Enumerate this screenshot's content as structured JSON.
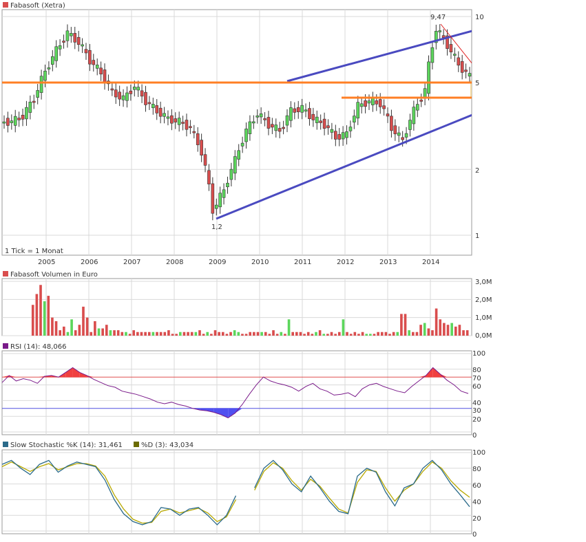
{
  "colors": {
    "up": "#5cd65c",
    "down": "#d94d4d",
    "channel": "#4a4ac0",
    "support": "#ff7f24",
    "trend": "#e02020",
    "rsi_line": "#7a1a8a",
    "stoch_k": "#2a6a8a",
    "stoch_d": "#b8a800",
    "highlight": "#f2d9a0"
  },
  "price": {
    "legend": "Fabasoft (Xetra)",
    "note": "1 Tick = 1 Monat",
    "high_label": "9,47",
    "low_label": "1,2",
    "y_ticks": [
      "10",
      "5",
      "2",
      "1"
    ],
    "x_ticks": [
      "2005",
      "2006",
      "2007",
      "2008",
      "2009",
      "2010",
      "2011",
      "2012",
      "2013",
      "2014"
    ]
  },
  "volume": {
    "legend": "Fabasoft Volumen in Euro",
    "y_ticks": [
      "3,0M",
      "2,0M",
      "1,0M",
      "0,0M"
    ]
  },
  "rsi": {
    "legend": "RSI (14): 48,066",
    "y_ticks": [
      "100",
      "80",
      "60",
      "40",
      "20",
      "0"
    ],
    "level_high": "70",
    "level_low": "30"
  },
  "stoch": {
    "legend_k": "Slow Stochastic %K (14): 31,461",
    "legend_d": "%D (3): 43,034",
    "y_ticks": [
      "100",
      "80",
      "60",
      "40",
      "20",
      "0"
    ]
  },
  "chart_data": [
    {
      "type": "line",
      "title": "Fabasoft (Xetra)",
      "scale": "log",
      "ylim": [
        0.9,
        11
      ],
      "x": [
        "2004-07",
        "2004-10",
        "2005-01",
        "2005-04",
        "2005-07",
        "2005-10",
        "2006-01",
        "2006-04",
        "2006-07",
        "2006-10",
        "2007-01",
        "2007-04",
        "2007-07",
        "2007-10",
        "2008-01",
        "2008-04",
        "2008-07",
        "2008-10",
        "2009-01",
        "2009-04",
        "2009-07",
        "2009-10",
        "2010-01",
        "2010-04",
        "2010-07",
        "2010-10",
        "2011-01",
        "2011-04",
        "2011-07",
        "2011-10",
        "2012-01",
        "2012-04",
        "2012-07",
        "2012-10",
        "2013-01",
        "2013-04",
        "2013-07",
        "2013-10",
        "2014-01",
        "2014-04",
        "2014-07",
        "2014-10"
      ],
      "series": [
        {
          "values": [
            3.3,
            3.5,
            4.2,
            5.6,
            7.0,
            8.4,
            7.6,
            6.3,
            5.5,
            4.5,
            4.2,
            4.8,
            4.1,
            3.7,
            3.4,
            3.3,
            3.1,
            2.4,
            1.3,
            1.6,
            2.2,
            3.0,
            3.6,
            3.2,
            3.0,
            3.7,
            3.8,
            3.4,
            3.2,
            2.8,
            2.9,
            3.9,
            4.1,
            4.0,
            3.1,
            2.7,
            3.7,
            4.6,
            8.8,
            7.4,
            6.0,
            5.3
          ]
        }
      ],
      "annotations": [
        "9,47",
        "1,2"
      ]
    },
    {
      "type": "bar",
      "title": "Fabasoft Volumen in Euro",
      "ylim": [
        0,
        3.0
      ],
      "series": [
        {
          "values": [
            0,
            0,
            0,
            0,
            0,
            0,
            0,
            1.7,
            2.3,
            2.8,
            1.9,
            2.2,
            1.0,
            0.8,
            0.3,
            0.5,
            0.2,
            0.9,
            0.3,
            0.6,
            1.6,
            1.0,
            0.2,
            0.8,
            0.4,
            0.4,
            0.6,
            0.3,
            0.3,
            0.3,
            0.2,
            0.2,
            0.1,
            0.3,
            0.2,
            0.2,
            0.2,
            0.2,
            0.2,
            0.2,
            0.2,
            0.2,
            0.3,
            0.1,
            0.1,
            0.2,
            0.2,
            0.2,
            0.2,
            0.2,
            0.3,
            0.1,
            0.2,
            0.1,
            0.3,
            0.2,
            0.2,
            0.1,
            0.2,
            0.3,
            0.2,
            0.1,
            0.1,
            0.2,
            0.2,
            0.2,
            0.2,
            0.2,
            0.1,
            0.3,
            0.1,
            0.2,
            0.1,
            0.9,
            0.2,
            0.2,
            0.2,
            0.1,
            0.2,
            0.1,
            0.2,
            0.3,
            0.1,
            0.1,
            0.2,
            0.1,
            0.2,
            0.9,
            0.2,
            0.1,
            0.2,
            0.1,
            0.2,
            0.1,
            0.1,
            0.1,
            0.2,
            0.2,
            0.2,
            0.1,
            0.2,
            0.2,
            1.2,
            1.2,
            0.3,
            0.2,
            0.2,
            0.6,
            0.7,
            0.4,
            0.3,
            1.5,
            0.9,
            0.7,
            0.6,
            0.7,
            0.5,
            0.6,
            0.3,
            0.3
          ]
        }
      ]
    },
    {
      "type": "line",
      "title": "RSI (14): 48,066",
      "ylim": [
        0,
        100
      ],
      "series": [
        {
          "name": "RSI",
          "values": [
            63,
            72,
            65,
            68,
            66,
            62,
            71,
            72,
            70,
            76,
            82,
            76,
            72,
            67,
            63,
            59,
            57,
            52,
            50,
            48,
            45,
            42,
            38,
            36,
            38,
            35,
            33,
            30,
            28,
            27,
            25,
            22,
            18,
            24,
            35,
            48,
            60,
            70,
            65,
            62,
            60,
            57,
            52,
            58,
            62,
            55,
            52,
            47,
            48,
            50,
            45,
            55,
            60,
            62,
            58,
            55,
            52,
            50,
            58,
            65,
            72,
            82,
            74,
            66,
            60,
            52,
            49
          ]
        }
      ]
    },
    {
      "type": "line",
      "title": "Slow Stochastic %K (14): 31,461",
      "ylim": [
        0,
        100
      ],
      "series": [
        {
          "name": "Slow Stochastic %K (14)",
          "values": [
            85,
            90,
            80,
            72,
            85,
            90,
            75,
            83,
            88,
            85,
            82,
            65,
            40,
            22,
            12,
            8,
            12,
            30,
            28,
            20,
            28,
            30,
            20,
            8,
            20,
            45,
            null,
            55,
            80,
            90,
            78,
            60,
            50,
            70,
            55,
            38,
            25,
            22,
            70,
            80,
            75,
            50,
            32,
            55,
            60,
            80,
            90,
            78,
            60,
            46,
            31
          ]
        },
        {
          "name": "%D (3)",
          "values": [
            82,
            88,
            82,
            76,
            82,
            86,
            78,
            82,
            86,
            86,
            83,
            70,
            46,
            28,
            15,
            10,
            11,
            25,
            28,
            23,
            26,
            29,
            23,
            12,
            18,
            40,
            null,
            52,
            76,
            87,
            80,
            64,
            52,
            66,
            57,
            42,
            28,
            23,
            62,
            78,
            76,
            55,
            38,
            52,
            60,
            76,
            88,
            80,
            64,
            52,
            43
          ]
        }
      ]
    }
  ]
}
